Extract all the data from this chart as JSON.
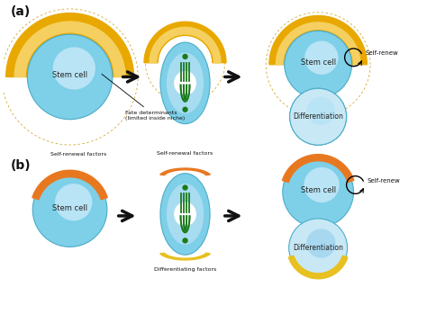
{
  "background_color": "#ffffff",
  "panel_a_label": "(a)",
  "panel_b_label": "(b)",
  "cell_blue_light": "#7ECFE8",
  "cell_blue_dark": "#4BADC8",
  "cell_blue_pale": "#C5E8F5",
  "niche_gold_outer": "#E8A800",
  "niche_gold_inner": "#F5D060",
  "niche_orange": "#E87820",
  "niche_yellow_diff": "#E8C020",
  "green_dot": "#1A7A1A",
  "green_line": "#1A7A1A",
  "arrow_color": "#111111",
  "text_color": "#111111",
  "dashed_gold": "#D4A830",
  "labels": {
    "stem_cell": "Stem cell",
    "fate_det": "Fate determinants\n(limited inside niche)",
    "self_renew": "Self-renew",
    "differentiation": "Differentiation",
    "self_renewal_factors": "Self-renewal factors",
    "differentiating_factors": "Differentiating factors"
  }
}
